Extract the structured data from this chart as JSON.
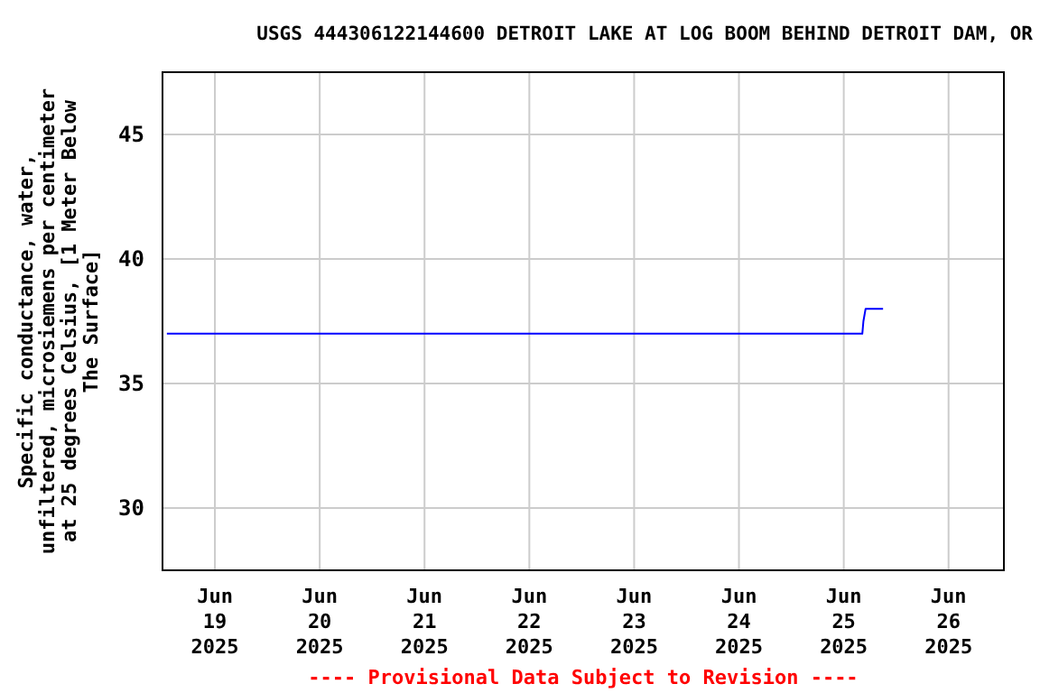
{
  "chart_data": {
    "type": "line",
    "title": "USGS 444306122144600 DETROIT LAKE AT LOG BOOM BEHIND DETROIT DAM, OR",
    "ylabel": "Specific conductance, water,\nunfiltered, microsiemens per centimeter\nat 25 degrees Celsius, [1 Meter Below\nThe Surface]",
    "annotations": [
      "---- Provisional Data Subject to Revision ----"
    ],
    "series": [
      {
        "color": "#0000ff",
        "x": [
          "2025-06-18T13:00",
          "2025-06-25T04:15",
          "2025-06-25T04:30",
          "2025-06-25T05:00",
          "2025-06-25T09:00"
        ],
        "values": [
          37,
          37,
          37.5,
          38,
          38
        ]
      }
    ],
    "xlim": [
      "2025-06-18T12:00",
      "2025-06-26T12:40"
    ],
    "xticks": [
      {
        "value": "2025-06-19",
        "label": "Jun\n19\n2025"
      },
      {
        "value": "2025-06-20",
        "label": "Jun\n20\n2025"
      },
      {
        "value": "2025-06-21",
        "label": "Jun\n21\n2025"
      },
      {
        "value": "2025-06-22",
        "label": "Jun\n22\n2025"
      },
      {
        "value": "2025-06-23",
        "label": "Jun\n23\n2025"
      },
      {
        "value": "2025-06-24",
        "label": "Jun\n24\n2025"
      },
      {
        "value": "2025-06-25",
        "label": "Jun\n25\n2025"
      },
      {
        "value": "2025-06-26",
        "label": "Jun\n26\n2025"
      }
    ],
    "ylim": [
      27.5,
      47.5
    ],
    "yticks": [
      30,
      35,
      40,
      45
    ],
    "grid": true,
    "marker": "none",
    "line_style": "solid"
  }
}
